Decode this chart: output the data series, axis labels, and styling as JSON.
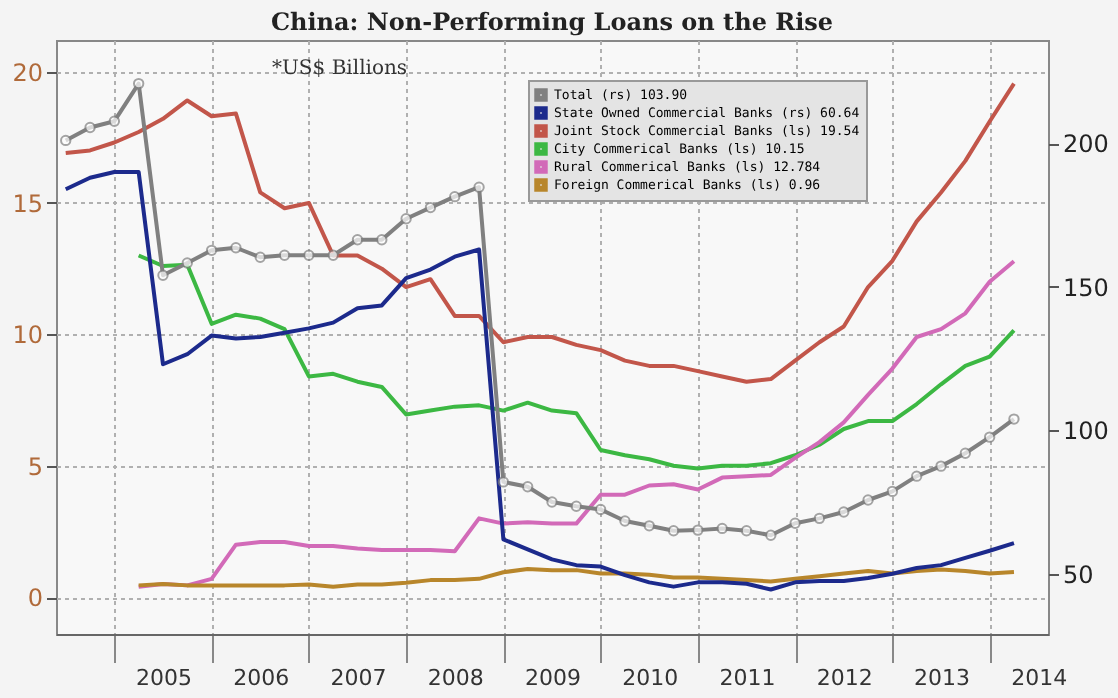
{
  "chart_data": {
    "type": "line",
    "title": "China: Non-Performing Loans on the Rise",
    "annotations": [
      "*US$ Billions"
    ],
    "x": [
      2004.5,
      2004.75,
      2005,
      2005.25,
      2005.5,
      2005.75,
      2006,
      2006.25,
      2006.5,
      2006.75,
      2007,
      2007.25,
      2007.5,
      2007.75,
      2008,
      2008.25,
      2008.5,
      2008.75,
      2009,
      2009.25,
      2009.5,
      2009.75,
      2010,
      2010.25,
      2010.5,
      2010.75,
      2011,
      2011.25,
      2011.5,
      2011.75,
      2012,
      2012.25,
      2012.5,
      2012.75,
      2013,
      2013.25,
      2013.5,
      2013.75,
      2014,
      2014.25
    ],
    "series": [
      {
        "name": "Total (rs) 103.90",
        "color": "#808080",
        "axis": "y2",
        "marker": "circle",
        "values": [
          201,
          205.5,
          207.7,
          220.8,
          154,
          158.3,
          162.7,
          163.6,
          160.3,
          161,
          161,
          161,
          166.4,
          166.4,
          173.7,
          177.6,
          181.4,
          184.7,
          82,
          80.3,
          75,
          73.5,
          72.4,
          68.4,
          66.7,
          65,
          65.2,
          65.8,
          65,
          63.4,
          67.6,
          69.3,
          71.5,
          75.7,
          78.7,
          84,
          87.5,
          92,
          97.6,
          103.9
        ]
      },
      {
        "name": "State Owned Commercial Banks (rs) 60.64",
        "color": "#1c2a8c",
        "axis": "y2",
        "marker": "none",
        "values": [
          184,
          188,
          190,
          190,
          123,
          126.5,
          133,
          132,
          132.5,
          134,
          135.5,
          137.5,
          142.5,
          143.5,
          153,
          156,
          160.5,
          163,
          62,
          58.5,
          55,
          53,
          52.5,
          49.5,
          47,
          45.5,
          47,
          47,
          46.5,
          44.5,
          47,
          47.5,
          47.5,
          48.5,
          50,
          52,
          53,
          55.5,
          58,
          60.64
        ]
      },
      {
        "name": "Joint Stock Commercial Banks (ls) 19.54",
        "color": "#c2564a",
        "axis": "y",
        "marker": "none",
        "values": [
          16.9,
          17.0,
          17.3,
          17.7,
          18.2,
          18.9,
          18.3,
          18.4,
          15.4,
          14.8,
          15.0,
          13.0,
          13.0,
          12.5,
          11.8,
          12.1,
          10.7,
          10.7,
          9.7,
          9.9,
          9.9,
          9.6,
          9.4,
          9.0,
          8.8,
          8.8,
          8.6,
          8.4,
          8.2,
          8.3,
          9.0,
          9.7,
          10.3,
          11.8,
          12.8,
          14.3,
          15.4,
          16.6,
          18.1,
          19.54
        ]
      },
      {
        "name": "City Commerical Banks (ls) 10.15",
        "color": "#3cb843",
        "axis": "y",
        "marker": "none",
        "values": [
          null,
          null,
          null,
          13.0,
          12.6,
          12.65,
          10.4,
          10.75,
          10.6,
          10.2,
          8.4,
          8.5,
          8.2,
          8.0,
          6.95,
          7.1,
          7.25,
          7.3,
          7.1,
          7.4,
          7.1,
          7.0,
          5.6,
          5.4,
          5.25,
          5.0,
          4.9,
          5.0,
          5.0,
          5.1,
          5.4,
          5.8,
          6.4,
          6.7,
          6.7,
          7.35,
          8.1,
          8.8,
          9.15,
          10.15
        ]
      },
      {
        "name": "Rural Commerical Banks (ls) 12.784",
        "color": "#d26ab8",
        "axis": "y",
        "marker": "none",
        "values": [
          null,
          null,
          null,
          0.4,
          0.5,
          0.45,
          0.7,
          2.0,
          2.1,
          2.1,
          1.95,
          1.95,
          1.85,
          1.8,
          1.8,
          1.8,
          1.75,
          3.0,
          2.8,
          2.85,
          2.8,
          2.8,
          3.9,
          3.9,
          4.25,
          4.3,
          4.1,
          4.55,
          4.6,
          4.65,
          5.3,
          5.9,
          6.65,
          7.7,
          8.7,
          9.9,
          10.2,
          10.8,
          12.0,
          12.784
        ]
      },
      {
        "name": "Foreign Commerical Banks (ls) 0.96",
        "color": "#b8862b",
        "axis": "y",
        "marker": "none",
        "values": [
          null,
          null,
          null,
          0.45,
          0.5,
          0.45,
          0.45,
          0.45,
          0.45,
          0.45,
          0.48,
          0.4,
          0.48,
          0.48,
          0.55,
          0.65,
          0.65,
          0.7,
          0.95,
          1.07,
          1.03,
          1.03,
          0.9,
          0.9,
          0.85,
          0.75,
          0.75,
          0.7,
          0.65,
          0.6,
          0.7,
          0.8,
          0.9,
          1.0,
          0.9,
          1.0,
          1.05,
          1.0,
          0.9,
          0.96
        ]
      }
    ],
    "xlim": [
      2004.4,
      2014.6
    ],
    "xticks": [
      {
        "value": 2005,
        "label": null
      },
      {
        "value": 2005.5,
        "label": "2005"
      },
      {
        "value": 2006,
        "label": null
      },
      {
        "value": 2006.5,
        "label": "2006"
      },
      {
        "value": 2007,
        "label": null
      },
      {
        "value": 2007.5,
        "label": "2007"
      },
      {
        "value": 2008,
        "label": null
      },
      {
        "value": 2008.5,
        "label": "2008"
      },
      {
        "value": 2009,
        "label": null
      },
      {
        "value": 2009.5,
        "label": "2009"
      },
      {
        "value": 2010,
        "label": null
      },
      {
        "value": 2010.5,
        "label": "2010"
      },
      {
        "value": 2011,
        "label": null
      },
      {
        "value": 2011.5,
        "label": "2011"
      },
      {
        "value": 2012,
        "label": null
      },
      {
        "value": 2012.5,
        "label": "2012"
      },
      {
        "value": 2013,
        "label": null
      },
      {
        "value": 2013.5,
        "label": "2013"
      },
      {
        "value": 2014,
        "label": null
      },
      {
        "value": 2014.5,
        "label": "2014"
      }
    ],
    "ylim": [
      -1.4,
      21.2
    ],
    "yticks": [
      0,
      5,
      10,
      15,
      20
    ],
    "y2lim": [
      29,
      236
    ],
    "y2ticks": [
      50,
      100,
      150,
      200
    ],
    "grid": true,
    "legend": "top right",
    "line_style": "solid"
  }
}
